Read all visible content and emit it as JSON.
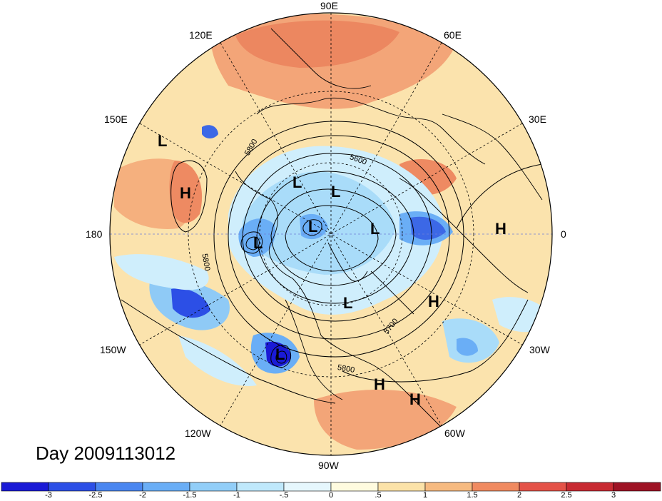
{
  "title": "Day 2009113012",
  "longitude_labels": {
    "lon_90e": "90E",
    "lon_60e": "60E",
    "lon_120e": "120E",
    "lon_150e": "150E",
    "lon_30e": "30E",
    "lon_180": "180",
    "lon_0": "0",
    "lon_150w": "150W",
    "lon_30w": "30W",
    "lon_120w": "120W",
    "lon_60w": "60W",
    "lon_90w": "90W"
  },
  "pressure_centers": {
    "l1": "L",
    "l2": "L",
    "l3": "L",
    "l4": "L",
    "l5": "L",
    "l6": "L",
    "l7": "L",
    "l8": "L",
    "h1": "H",
    "h2": "H",
    "h3": "H",
    "h4": "H",
    "h5": "H"
  },
  "contour_labels": {
    "c5800_a": "5800",
    "c5600": "5600",
    "c5800_b": "5800",
    "c5700": "5700",
    "c5800_c": "5800"
  },
  "colorbar": {
    "ticks": [
      "-3",
      "-2.5",
      "-2",
      "-1.5",
      "-1",
      "-.5",
      "0",
      ".5",
      "1",
      "1.5",
      "2",
      "2.5",
      "3"
    ],
    "colors": [
      "#1a1ad6",
      "#2c4fe6",
      "#4a86f0",
      "#6aaef6",
      "#92cef8",
      "#bfe8fb",
      "#e6f7fd",
      "#fffbdf",
      "#fbe2a8",
      "#f6ba80",
      "#f08a60",
      "#e45248",
      "#c82a32",
      "#9e1224"
    ]
  },
  "map_colors": {
    "ocean_neutral": "#fff6d6",
    "warm_light": "#fbe0a6",
    "warm_mid": "#f5b57e",
    "warm_strong": "#ee8a62",
    "cool_light": "#cfeefc",
    "cool_mid": "#8fcaf6",
    "cool_strong": "#4b87ee",
    "cool_deep": "#2030d8"
  }
}
